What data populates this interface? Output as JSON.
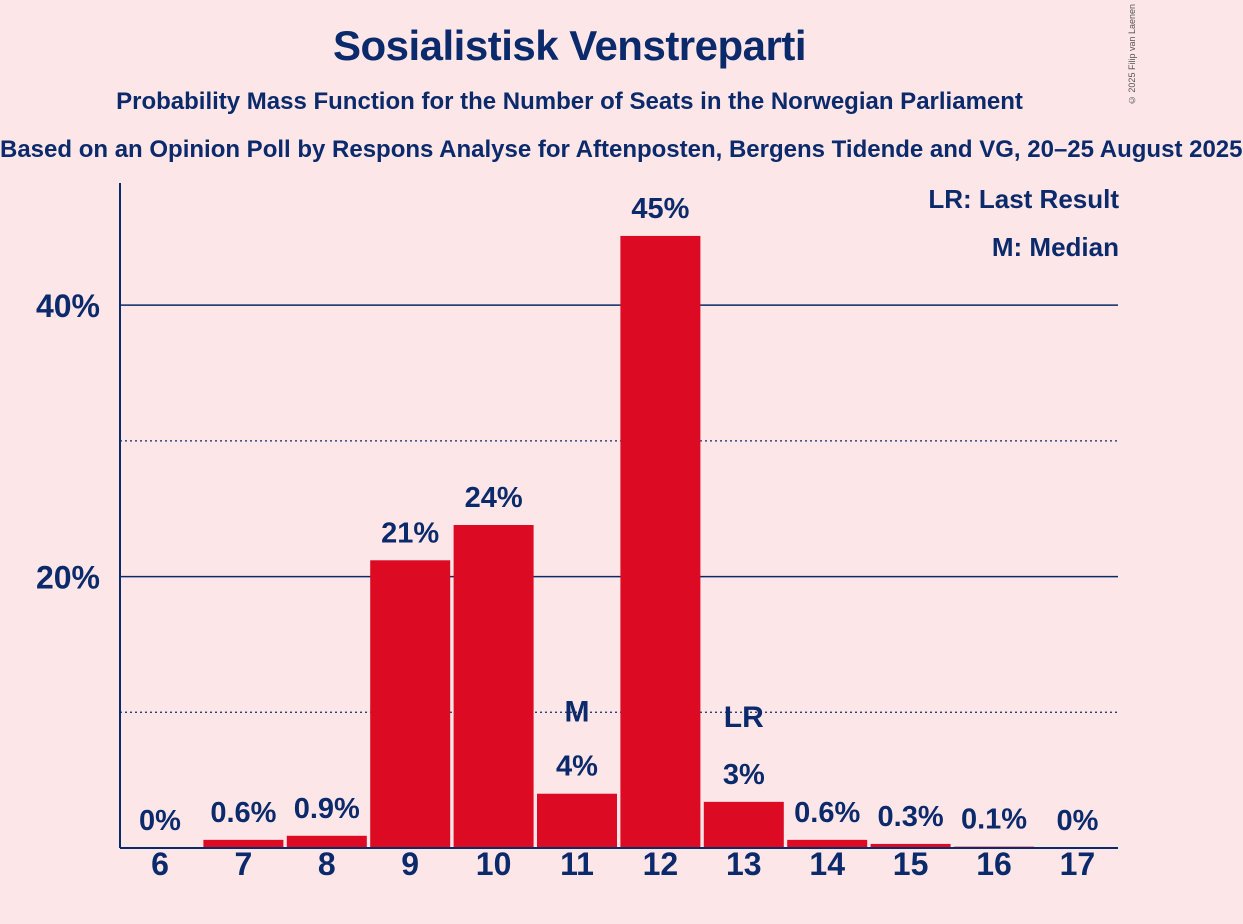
{
  "chart_data": {
    "type": "bar",
    "title": "Sosialistisk Venstreparti",
    "subtitle": "Probability Mass Function for the Number of Seats in the Norwegian Parliament",
    "source": "Based on an Opinion Poll by Respons Analyse for Aftenposten, Bergens Tidende and VG, 20–25 August 2025",
    "copyright": "© 2025 Filip van Laenen",
    "categories": [
      "6",
      "7",
      "8",
      "9",
      "10",
      "11",
      "12",
      "13",
      "14",
      "15",
      "16",
      "17"
    ],
    "values": [
      0,
      0.6,
      0.9,
      21.2,
      23.8,
      4.0,
      45.1,
      3.4,
      0.6,
      0.3,
      0.1,
      0
    ],
    "value_labels": [
      "0%",
      "0.6%",
      "0.9%",
      "21%",
      "24%",
      "4%",
      "45%",
      "3%",
      "0.6%",
      "0.3%",
      "0.1%",
      "0%"
    ],
    "ylim": [
      0,
      49
    ],
    "y_ticks": [
      {
        "value": 20,
        "label": "20%"
      },
      {
        "value": 40,
        "label": "40%"
      }
    ],
    "minor_gridlines": [
      10,
      30
    ],
    "median_category": "11",
    "last_result_category": "13",
    "markers": {
      "median": "M",
      "last_result": "LR"
    },
    "legend": {
      "position": "top-right",
      "entries": [
        "LR: Last Result",
        "M: Median"
      ]
    },
    "colors": {
      "bar": "#dc0a23",
      "text": "#0b2a6b",
      "background": "#fde6e8"
    }
  }
}
